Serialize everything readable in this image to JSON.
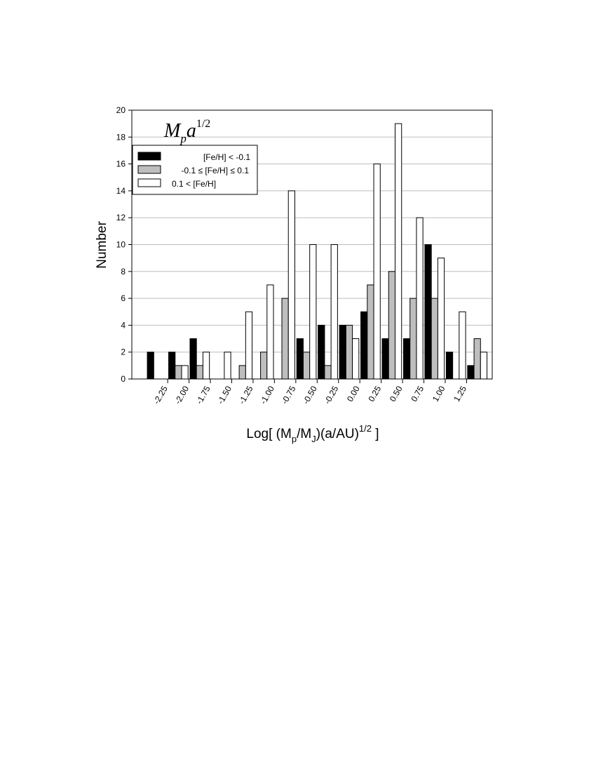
{
  "chart_data": {
    "type": "bar",
    "title_parts": {
      "base_m": "M",
      "sub_p": "p",
      "base_a": "a",
      "sup": "1/2"
    },
    "ylabel": "Number",
    "xlabel_parts": {
      "a": "Log[ (M",
      "b": "p",
      "c": "/M",
      "d": "J",
      "e": ")(a/AU)",
      "f": "1/2",
      "g": " ]"
    },
    "ylim": [
      0,
      20
    ],
    "yticks": [
      0,
      2,
      4,
      6,
      8,
      10,
      12,
      14,
      16,
      18,
      20
    ],
    "yticklabels": [
      "0",
      "2",
      "4",
      "6",
      "8",
      "10",
      "12",
      "14",
      "16",
      "18",
      "20"
    ],
    "grid": true,
    "xticks": [
      -2.25,
      -2.0,
      -1.75,
      -1.5,
      -1.25,
      -1.0,
      -0.75,
      -0.5,
      -0.25,
      0.0,
      0.25,
      0.5,
      0.75,
      1.0,
      1.25
    ],
    "xticklabels": [
      "-2.25",
      "-2.00",
      "-1.75",
      "-1.50",
      "-1.25",
      "-1.00",
      "-0.75",
      "-0.50",
      "-0.25",
      "0.00",
      "0.25",
      "0.50",
      "0.75",
      "1.00",
      "1.25"
    ],
    "bin_centers": [
      -2.375,
      -2.125,
      -1.875,
      -1.625,
      -1.375,
      -1.125,
      -0.875,
      -0.625,
      -0.375,
      -0.125,
      0.125,
      0.375,
      0.625,
      0.875,
      1.125,
      1.375
    ],
    "legend_position": "top-left",
    "series": [
      {
        "name": "[Fe/H] < -0.1",
        "color": "#000000",
        "values": [
          2,
          2,
          3,
          0,
          0,
          0,
          0,
          3,
          4,
          4,
          5,
          3,
          3,
          10,
          2,
          1
        ]
      },
      {
        "name": "-0.1 ≤ [Fe/H] ≤ 0.1",
        "color": "#bebebe",
        "values": [
          0,
          1,
          1,
          0,
          1,
          2,
          6,
          2,
          1,
          4,
          7,
          8,
          6,
          6,
          0,
          3
        ]
      },
      {
        "name": "0.1 < [Fe/H]",
        "color": "#ffffff",
        "values": [
          0,
          1,
          2,
          2,
          5,
          7,
          14,
          10,
          10,
          3,
          16,
          19,
          12,
          9,
          5,
          2
        ]
      }
    ]
  }
}
